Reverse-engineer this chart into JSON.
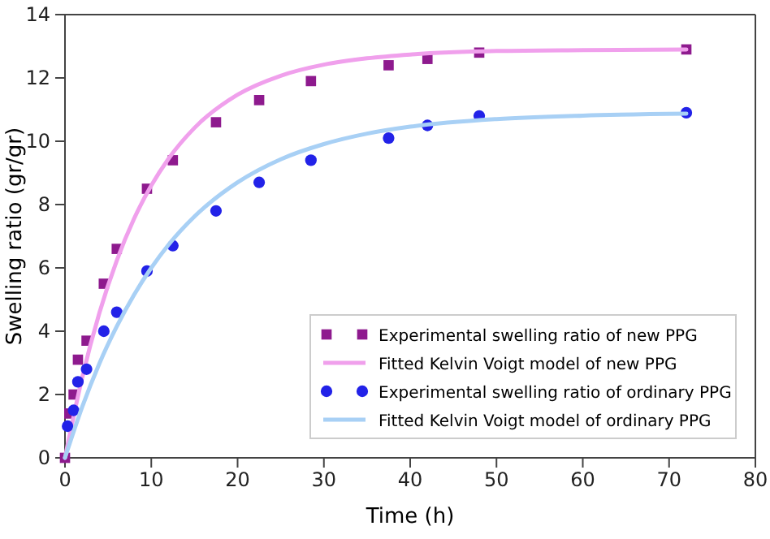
{
  "chart_data": {
    "type": "scatter",
    "xlabel": "Time (h)",
    "ylabel": "Swelling ratio (gr/gr)",
    "xlim": [
      0,
      80
    ],
    "ylim": [
      0,
      14
    ],
    "xticks": [
      0,
      10,
      20,
      30,
      40,
      50,
      60,
      70,
      80
    ],
    "yticks": [
      0,
      2,
      4,
      6,
      8,
      10,
      12,
      14
    ],
    "grid": false,
    "legend": "bottom right",
    "series": [
      {
        "name": "Experimental swelling ratio of new PPG",
        "marker": "square",
        "color": "#8e1a8e",
        "x": [
          0,
          0.5,
          1,
          1.5,
          2.5,
          4.5,
          6,
          9.5,
          12.5,
          17.5,
          22.5,
          28.5,
          37.5,
          42,
          48,
          72
        ],
        "values": [
          0,
          1.4,
          2.0,
          3.1,
          3.7,
          5.5,
          6.6,
          8.5,
          9.4,
          10.6,
          11.3,
          11.9,
          12.4,
          12.6,
          12.8,
          12.9
        ]
      },
      {
        "name": "Fitted Kelvin Voigt model of new PPG",
        "type": "line",
        "marker": "none",
        "color": "#f0a0ec",
        "x": [
          0,
          2,
          4,
          6,
          8,
          10,
          12,
          15,
          20,
          25,
          30,
          35,
          40,
          50,
          60,
          72
        ],
        "values": [
          0,
          2.54,
          4.59,
          6.23,
          7.55,
          8.6,
          9.45,
          10.42,
          11.47,
          12.07,
          12.42,
          12.62,
          12.74,
          12.85,
          12.88,
          12.9
        ]
      },
      {
        "name": "Experimental swelling ratio of ordinary PPG",
        "marker": "circle",
        "color": "#2222e8",
        "x": [
          0.3,
          1,
          1.5,
          2.5,
          4.5,
          6,
          9.5,
          12.5,
          17.5,
          22.5,
          28.5,
          37.5,
          42,
          48,
          72
        ],
        "values": [
          1.0,
          1.5,
          2.4,
          2.8,
          4.0,
          4.6,
          5.9,
          6.7,
          7.8,
          8.7,
          9.4,
          10.1,
          10.5,
          10.8,
          10.9
        ]
      },
      {
        "name": "Fitted Kelvin Voigt model of ordinary PPG",
        "type": "line",
        "marker": "none",
        "color": "#a8d0f5",
        "x": [
          0,
          2,
          4,
          6,
          8,
          10,
          12,
          15,
          20,
          25,
          30,
          35,
          40,
          50,
          60,
          72
        ],
        "values": [
          0,
          1.61,
          2.99,
          4.15,
          5.15,
          6.0,
          6.73,
          7.62,
          8.7,
          9.43,
          9.91,
          10.24,
          10.46,
          10.7,
          10.81,
          10.87
        ]
      }
    ]
  }
}
